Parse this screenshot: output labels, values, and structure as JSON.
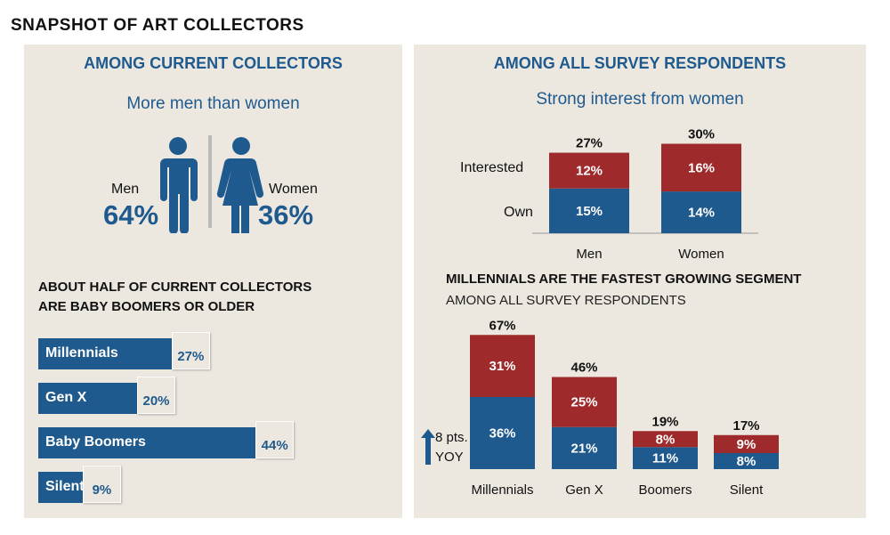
{
  "title": "SNAPSHOT OF ART COLLECTORS",
  "colors": {
    "blue": "#1f5a8e",
    "red": "#9e2a2b",
    "panel": "#ece8e0"
  },
  "left": {
    "header": "AMONG CURRENT COLLECTORS",
    "subtitle": "More men than women",
    "men_label": "Men",
    "men_value": "64%",
    "women_label": "Women",
    "women_value": "36%",
    "section_line1": "ABOUT HALF OF CURRENT COLLECTORS",
    "section_line2": "ARE BABY BOOMERS OR OLDER"
  },
  "right": {
    "header": "AMONG ALL SURVEY RESPONDENTS",
    "subtitle": "Strong interest from women",
    "section_title": "MILLENNIALS ARE THE FASTEST GROWING SEGMENT",
    "section_sub": "AMONG ALL SURVEY RESPONDENTS",
    "annotation_line1": "8 pts.",
    "annotation_line2": "YOY"
  },
  "chart_data": [
    {
      "type": "bar",
      "orientation": "horizontal",
      "categories": [
        "Millennials",
        "Gen X",
        "Baby Boomers",
        "Silent"
      ],
      "values": [
        27,
        20,
        44,
        9
      ],
      "labels": [
        "27%",
        "20%",
        "44%",
        "9%"
      ],
      "unit": "%"
    },
    {
      "type": "bar",
      "stacked": true,
      "categories": [
        "Men",
        "Women"
      ],
      "series": [
        {
          "name": "Own",
          "values": [
            15,
            14
          ],
          "labels": [
            "15%",
            "14%"
          ]
        },
        {
          "name": "Interested",
          "values": [
            12,
            16
          ],
          "labels": [
            "12%",
            "16%"
          ]
        }
      ],
      "totals": [
        "27%",
        "30%"
      ],
      "unit": "%"
    },
    {
      "type": "bar",
      "stacked": true,
      "categories": [
        "Millennials",
        "Gen X",
        "Boomers",
        "Silent"
      ],
      "series": [
        {
          "values": [
            36,
            21,
            11,
            8
          ],
          "labels": [
            "36%",
            "21%",
            "11%",
            "8%"
          ]
        },
        {
          "values": [
            31,
            25,
            8,
            9
          ],
          "labels": [
            "31%",
            "25%",
            "8%",
            "9%"
          ]
        }
      ],
      "totals": [
        "67%",
        "46%",
        "19%",
        "17%"
      ],
      "unit": "%"
    }
  ]
}
